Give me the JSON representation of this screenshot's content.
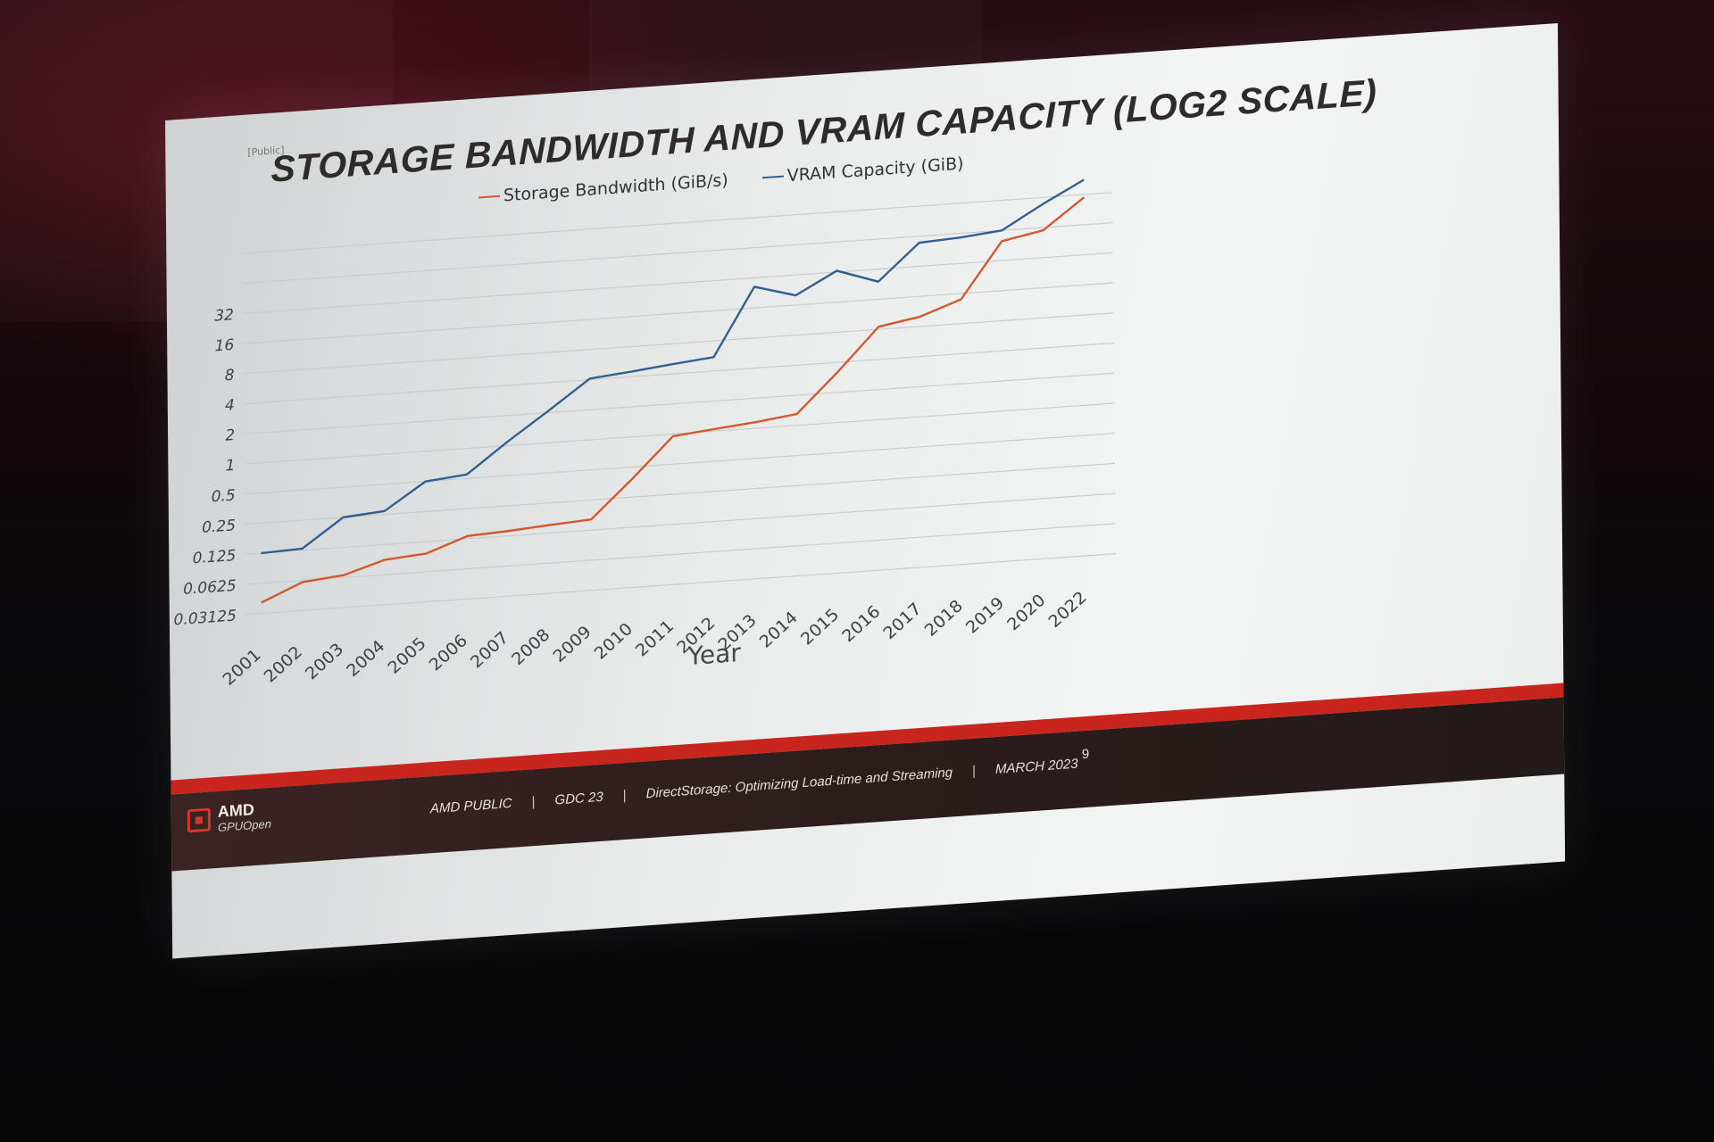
{
  "slide": {
    "public_tag": "[Public]",
    "header": "STORAGE BANDWIDTH AND VRAM CAPACITY (LOG2 SCALE)",
    "footer": {
      "brand": "AMD",
      "brand_sub": "GPUOpen",
      "classification": "AMD PUBLIC",
      "event": "GDC 23",
      "talk": "DirectStorage: Optimizing Load-time and Streaming",
      "date": "MARCH 2023",
      "page": "9"
    },
    "colors": {
      "accent_red": "#c8261c",
      "footer_bg": "#2c1d1c"
    }
  },
  "chart_data": {
    "type": "line",
    "title": "STORAGE BANDWIDTH AND VRAM CAPACITY",
    "xlabel": "Year",
    "ylabel": "",
    "y_scale": "log2",
    "ylim": [
      0.03125,
      128
    ],
    "y_ticks": [
      "0.03125",
      "0.0625",
      "0.125",
      "0.25",
      "0.5",
      "1",
      "2",
      "4",
      "8",
      "16",
      "32"
    ],
    "gridlines": 13,
    "grid": true,
    "legend": "top",
    "categories": [
      "2001",
      "2002",
      "2003",
      "2004",
      "2005",
      "2006",
      "2007",
      "2008",
      "2009",
      "2010",
      "2011",
      "2012",
      "2013",
      "2014",
      "2015",
      "2016",
      "2017",
      "2018",
      "2019",
      "2020",
      "2022"
    ],
    "series": [
      {
        "name": "Storage Bandwidth (GiB/s)",
        "color": "#d2572f",
        "values": [
          0.04,
          0.06,
          0.066,
          0.088,
          0.095,
          0.133,
          0.14,
          0.15,
          0.16,
          0.38,
          0.95,
          1.05,
          1.15,
          1.3,
          3.2,
          8.5,
          10,
          14,
          50,
          60,
          120
        ]
      },
      {
        "name": "VRAM Capacity (GiB)",
        "color": "#2f5f8e",
        "values": [
          0.125,
          0.13,
          0.25,
          0.27,
          0.5,
          0.55,
          1.1,
          2.1,
          4.1,
          4.5,
          5,
          5.5,
          26,
          20,
          33,
          24,
          55,
          58,
          64,
          110,
          180
        ]
      }
    ]
  }
}
